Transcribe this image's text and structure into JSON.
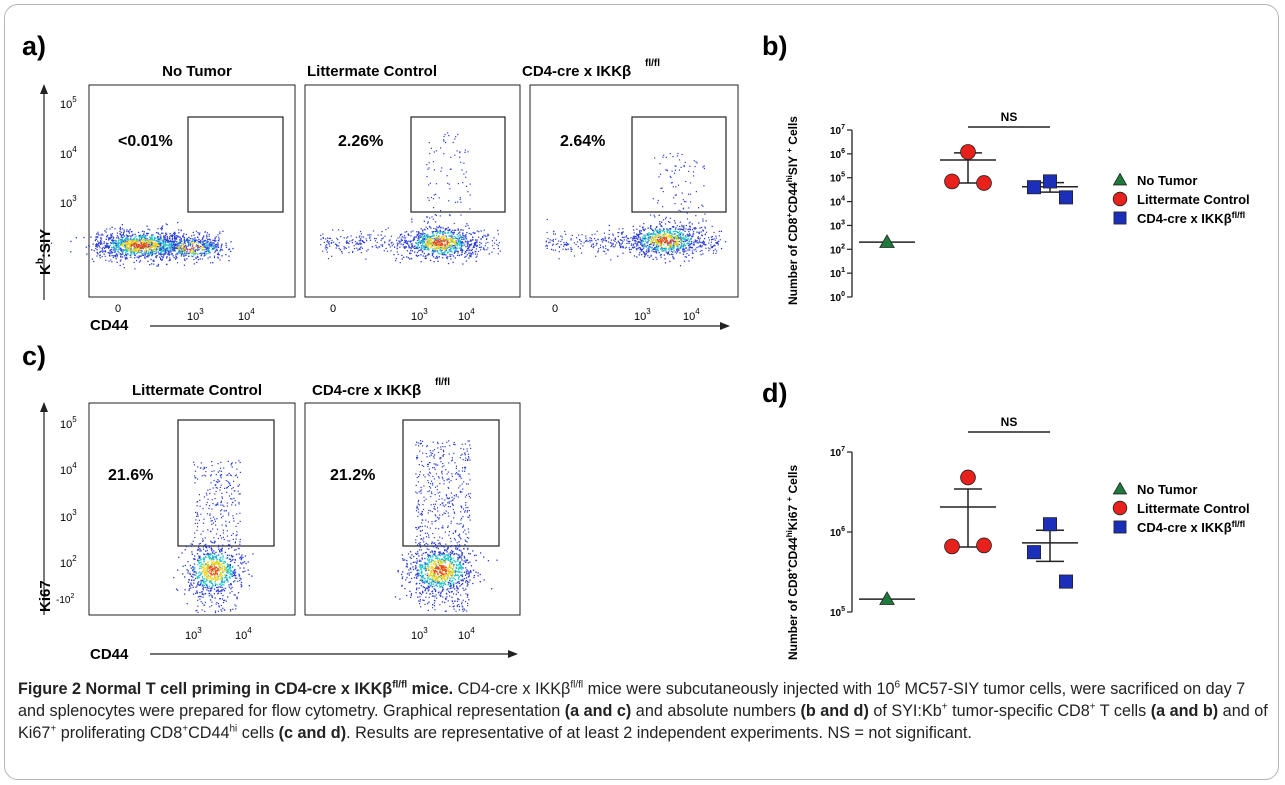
{
  "panel_letters": {
    "a": "a)",
    "b": "b)",
    "c": "c)",
    "d": "d)"
  },
  "panel_a": {
    "titles": [
      "No Tumor",
      "Littermate Control",
      "CD4-cre x IKKβ"
    ],
    "title_sup": "fl/fl",
    "gate_percents": [
      "<0.01%",
      "2.26%",
      "2.64%"
    ],
    "y_label_main": "K",
    "y_label_sup": "b",
    "y_label_rest": ":SIY",
    "x_label": "CD44",
    "y_ticks": [
      {
        "base": "10",
        "exp": "5"
      },
      {
        "base": "10",
        "exp": "4"
      },
      {
        "base": "10",
        "exp": "3"
      }
    ],
    "x_ticks": [
      {
        "base": "10",
        "exp": "3"
      },
      {
        "base": "10",
        "exp": "4"
      }
    ],
    "x_zero": "0"
  },
  "panel_c": {
    "titles": [
      "Littermate Control",
      "CD4-cre x IKKβ"
    ],
    "title_sup": "fl/fl",
    "gate_percents": [
      "21.6%",
      "21.2%"
    ],
    "y_label": "Ki67",
    "x_label": "CD44",
    "y_ticks": [
      {
        "base": "10",
        "exp": "5"
      },
      {
        "base": "10",
        "exp": "4"
      },
      {
        "base": "10",
        "exp": "3"
      },
      {
        "base": "10",
        "exp": "2"
      }
    ],
    "y_neg_tick": {
      "base": "-10",
      "exp": "2"
    },
    "x_ticks": [
      {
        "base": "10",
        "exp": "3"
      },
      {
        "base": "10",
        "exp": "4"
      }
    ]
  },
  "chart_data": [
    {
      "type": "scatter",
      "panel": "b)",
      "ylabel_parts": [
        "Number of CD8",
        "+",
        "CD44",
        "hi",
        "SIY ",
        "+",
        " Cells"
      ],
      "yscale": "log",
      "ylim": [
        1,
        10000000
      ],
      "y_ticks": [
        {
          "base": "10",
          "exp": "7"
        },
        {
          "base": "10",
          "exp": "6"
        },
        {
          "base": "10",
          "exp": "5"
        },
        {
          "base": "10",
          "exp": "4"
        },
        {
          "base": "10",
          "exp": "3"
        },
        {
          "base": "10",
          "exp": "2"
        },
        {
          "base": "10",
          "exp": "1"
        },
        {
          "base": "10",
          "exp": "0"
        }
      ],
      "significance": "NS",
      "series": [
        {
          "name": "No Tumor",
          "marker": "triangle",
          "color": "#1e7a3c",
          "points": [
            200
          ],
          "mean": 200
        },
        {
          "name": "Littermate Control",
          "marker": "circle",
          "color": "#e8211c",
          "points": [
            1200000,
            70000,
            60000
          ],
          "mean": 550000,
          "sem_upper": 1100000,
          "sem_lower": 60000
        },
        {
          "name": "CD4-cre x IKKβfl/fl",
          "marker": "square",
          "color": "#1c2fb8",
          "points": [
            70000,
            40000,
            15000
          ],
          "mean": 42000,
          "sem_upper": 62000,
          "sem_lower": 25000
        }
      ],
      "legend": [
        {
          "label": "No Tumor",
          "marker": "triangle",
          "color": "#1e7a3c"
        },
        {
          "label": "Littermate Control",
          "marker": "circle",
          "color": "#e8211c"
        },
        {
          "label": "CD4-cre x IKKβ",
          "sup": "fl/fl",
          "marker": "square",
          "color": "#1c2fb8"
        }
      ]
    },
    {
      "type": "scatter",
      "panel": "d)",
      "ylabel_parts": [
        "Number of CD8",
        "+",
        "CD44",
        "hi",
        "Ki67 ",
        "+",
        " Cells"
      ],
      "yscale": "log",
      "ylim": [
        100000,
        10000000
      ],
      "y_ticks": [
        {
          "base": "10",
          "exp": "7"
        },
        {
          "base": "10",
          "exp": "6"
        },
        {
          "base": "10",
          "exp": "5"
        }
      ],
      "significance": "NS",
      "series": [
        {
          "name": "No Tumor",
          "marker": "triangle",
          "color": "#1e7a3c",
          "points": [
            145000
          ],
          "mean": 145000
        },
        {
          "name": "Littermate Control",
          "marker": "circle",
          "color": "#e8211c",
          "points": [
            4800000,
            660000,
            680000
          ],
          "mean": 2050000,
          "sem_upper": 3450000,
          "sem_lower": 650000
        },
        {
          "name": "CD4-cre x IKKβfl/fl",
          "marker": "square",
          "color": "#1c2fb8",
          "points": [
            1250000,
            560000,
            240000
          ],
          "mean": 730000,
          "sem_upper": 1050000,
          "sem_lower": 430000
        }
      ],
      "legend": [
        {
          "label": "No Tumor",
          "marker": "triangle",
          "color": "#1e7a3c"
        },
        {
          "label": "Littermate Control",
          "marker": "circle",
          "color": "#e8211c"
        },
        {
          "label": "CD4-cre x IKKβ",
          "sup": "fl/fl",
          "marker": "square",
          "color": "#1c2fb8"
        }
      ]
    }
  ],
  "caption": {
    "title": "Figure 2 Normal T cell priming in CD4-cre x IKKβ",
    "title_sup": "fl/fl",
    "title_end": " mice.",
    "s1": " CD4-cre x IKKβ",
    "s1_sup": "fl/fl",
    "s2": " mice were subcutaneously injected with 10",
    "s2_sup": "6",
    "s3": " MC57-SIY tumor cells, were sacrificed on day 7 and splenocytes were prepared for flow cytometry. Graphical representation ",
    "b1": "(a and c)",
    "s4": " and absolute numbers ",
    "b2": "(b and d)",
    "s5": " of SYI:Kb",
    "s5_sup": "+",
    "s6": " tumor-specific CD8",
    "s6_sup": "+",
    "s7": " T cells ",
    "b3": "(a and b)",
    "s8": " and of Ki67",
    "s8_sup": "+",
    "s9": " proliferating CD8",
    "s9_sup": "+",
    "s10": "CD44",
    "s10_sup": "hi",
    "s11": " cells ",
    "b4": "(c and d)",
    "s12": ". Results are representative of at least 2 independent experiments. NS = not significant."
  },
  "colors": {
    "triangle": "#1e7a3c",
    "circle": "#e8211c",
    "square": "#1c2fb8",
    "density_low": "#2a3bd6",
    "density_mid": "#1ec8c8",
    "density_high": "#f0d21e",
    "density_peak": "#e84a1a"
  }
}
